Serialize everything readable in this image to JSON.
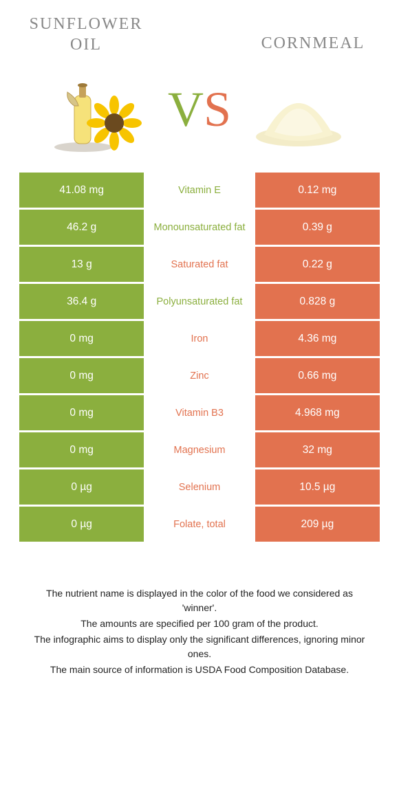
{
  "theme": {
    "left_color": "#8BAF3E",
    "right_color": "#E2724F",
    "text_muted": "#888888",
    "bg": "#ffffff"
  },
  "foods": {
    "left": {
      "name": "Sunflower oil",
      "icon": "sunflower-oil-icon"
    },
    "right": {
      "name": "Cornmeal",
      "icon": "cornmeal-icon"
    }
  },
  "vs_label": {
    "v": "V",
    "s": "S"
  },
  "rows": [
    {
      "nutrient": "Vitamin E",
      "left": "41.08 mg",
      "right": "0.12 mg",
      "winner": "left"
    },
    {
      "nutrient": "Monounsaturated fat",
      "left": "46.2 g",
      "right": "0.39 g",
      "winner": "left"
    },
    {
      "nutrient": "Saturated fat",
      "left": "13 g",
      "right": "0.22 g",
      "winner": "right"
    },
    {
      "nutrient": "Polyunsaturated fat",
      "left": "36.4 g",
      "right": "0.828 g",
      "winner": "left"
    },
    {
      "nutrient": "Iron",
      "left": "0 mg",
      "right": "4.36 mg",
      "winner": "right"
    },
    {
      "nutrient": "Zinc",
      "left": "0 mg",
      "right": "0.66 mg",
      "winner": "right"
    },
    {
      "nutrient": "Vitamin B3",
      "left": "0 mg",
      "right": "4.968 mg",
      "winner": "right"
    },
    {
      "nutrient": "Magnesium",
      "left": "0 mg",
      "right": "32 mg",
      "winner": "right"
    },
    {
      "nutrient": "Selenium",
      "left": "0 µg",
      "right": "10.5 µg",
      "winner": "right"
    },
    {
      "nutrient": "Folate, total",
      "left": "0 µg",
      "right": "209 µg",
      "winner": "right"
    }
  ],
  "notes": [
    "The nutrient name is displayed in the color of the food we considered as 'winner'.",
    "The amounts are specified per 100 gram of the product.",
    "The infographic aims to display only the significant differences, ignoring minor ones.",
    "The main source of information is USDA Food Composition Database."
  ]
}
